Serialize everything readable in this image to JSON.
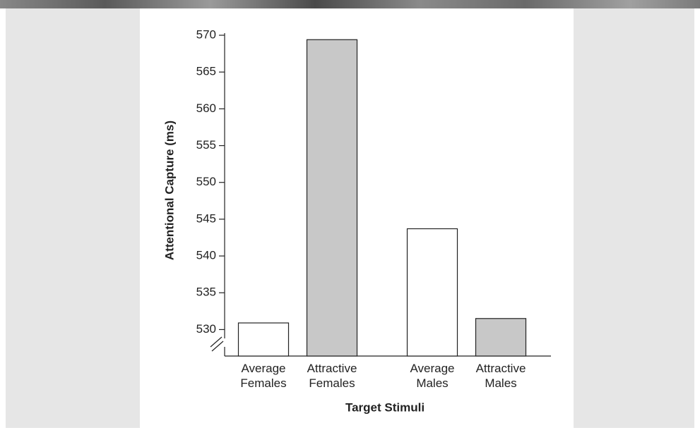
{
  "chart_data": {
    "type": "bar",
    "y_label": "Attentional Capture (ms)",
    "x_label": "Target Stimuli",
    "categories": [
      "Average Females",
      "Attractive Females",
      "Average Males",
      "Attractive Males"
    ],
    "values": [
      530.9,
      569.4,
      543.7,
      531.5
    ],
    "colors": [
      "#ffffff",
      "#c8c8c8",
      "#ffffff",
      "#c8c8c8"
    ],
    "ylim": [
      526.4,
      570
    ],
    "yticks": [
      530,
      535,
      540,
      545,
      550,
      555,
      560,
      565,
      570
    ],
    "axis_break": true
  }
}
